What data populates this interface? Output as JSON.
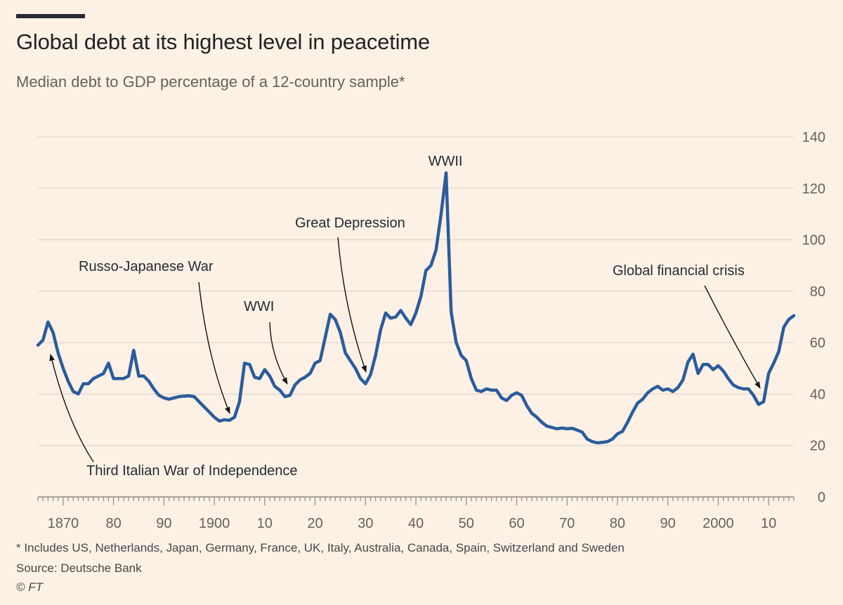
{
  "header": {
    "title": "Global debt at its highest level in peacetime",
    "subtitle": "Median debt to GDP percentage of a 12-country sample*"
  },
  "footer": {
    "note": "* Includes US, Netherlands, Japan, Germany, France, UK, Italy, Australia, Canada, Spain, Switzerland and Sweden",
    "source": "Source: Deutsche Bank",
    "credit": "© FT"
  },
  "colors": {
    "line": "#2b5c9c",
    "grid": "#e2d8ce",
    "axis": "#8f8a85",
    "background": "#fdf1e6"
  },
  "chart_data": {
    "type": "line",
    "title": "Global debt at its highest level in peacetime",
    "subtitle": "Median debt to GDP percentage of a 12-country sample*",
    "xlabel": "",
    "ylabel": "",
    "xlim": [
      1865,
      2015
    ],
    "ylim": [
      0,
      140
    ],
    "grid": true,
    "y_axis_side": "right",
    "y_ticks": [
      0,
      20,
      40,
      60,
      80,
      100,
      120,
      140
    ],
    "x_ticks": [
      {
        "value": 1870,
        "label": "1870"
      },
      {
        "value": 1880,
        "label": "80"
      },
      {
        "value": 1890,
        "label": "90"
      },
      {
        "value": 1900,
        "label": "1900"
      },
      {
        "value": 1910,
        "label": "10"
      },
      {
        "value": 1920,
        "label": "20"
      },
      {
        "value": 1930,
        "label": "30"
      },
      {
        "value": 1940,
        "label": "40"
      },
      {
        "value": 1950,
        "label": "50"
      },
      {
        "value": 1960,
        "label": "60"
      },
      {
        "value": 1970,
        "label": "70"
      },
      {
        "value": 1980,
        "label": "80"
      },
      {
        "value": 1990,
        "label": "90"
      },
      {
        "value": 2000,
        "label": "2000"
      },
      {
        "value": 2010,
        "label": "10"
      }
    ],
    "series": [
      {
        "name": "Median debt to GDP (%)",
        "x": [
          1865,
          1866,
          1867,
          1868,
          1869,
          1870,
          1871,
          1872,
          1873,
          1874,
          1875,
          1876,
          1877,
          1878,
          1879,
          1880,
          1881,
          1882,
          1883,
          1884,
          1885,
          1886,
          1887,
          1888,
          1889,
          1890,
          1891,
          1892,
          1893,
          1894,
          1895,
          1896,
          1897,
          1898,
          1899,
          1900,
          1901,
          1902,
          1903,
          1904,
          1905,
          1906,
          1907,
          1908,
          1909,
          1910,
          1911,
          1912,
          1913,
          1914,
          1915,
          1916,
          1917,
          1918,
          1919,
          1920,
          1921,
          1922,
          1923,
          1924,
          1925,
          1926,
          1927,
          1928,
          1929,
          1930,
          1931,
          1932,
          1933,
          1934,
          1935,
          1936,
          1937,
          1938,
          1939,
          1940,
          1941,
          1942,
          1943,
          1944,
          1945,
          1946,
          1947,
          1948,
          1949,
          1950,
          1951,
          1952,
          1953,
          1954,
          1955,
          1956,
          1957,
          1958,
          1959,
          1960,
          1961,
          1962,
          1963,
          1964,
          1965,
          1966,
          1967,
          1968,
          1969,
          1970,
          1971,
          1972,
          1973,
          1974,
          1975,
          1976,
          1977,
          1978,
          1979,
          1980,
          1981,
          1982,
          1983,
          1984,
          1985,
          1986,
          1987,
          1988,
          1989,
          1990,
          1991,
          1992,
          1993,
          1994,
          1995,
          1996,
          1997,
          1998,
          1999,
          2000,
          2001,
          2002,
          2003,
          2004,
          2005,
          2006,
          2007,
          2008,
          2009,
          2010,
          2011,
          2012,
          2013,
          2014,
          2015
        ],
        "values": [
          59,
          61,
          68,
          64,
          56,
          50,
          45,
          41,
          40,
          44,
          44,
          46,
          47,
          48,
          52,
          46,
          46,
          46,
          47,
          57,
          47,
          47,
          45,
          42,
          39.5,
          38.5,
          38,
          38.5,
          39,
          39.2,
          39.3,
          39,
          37,
          35,
          33,
          31,
          29.5,
          30,
          29.8,
          31,
          37,
          52,
          51.5,
          46.5,
          46,
          49.5,
          47,
          43,
          41.5,
          39,
          39.5,
          43.5,
          45.5,
          46.5,
          48,
          52,
          53,
          62,
          71,
          69,
          64,
          56,
          53,
          50,
          46,
          44,
          47.5,
          55,
          65,
          71.5,
          69.5,
          70,
          72.5,
          69.5,
          67,
          71.5,
          78,
          88,
          90,
          96,
          110,
          126,
          72,
          60,
          55,
          53,
          46,
          41.5,
          41,
          42,
          41.5,
          41.5,
          38.5,
          37.5,
          39.5,
          40.5,
          39.5,
          35.5,
          32.5,
          31,
          29,
          27.5,
          27,
          26.5,
          26.8,
          26.5,
          26.7,
          26,
          25.2,
          22.5,
          21.5,
          21,
          21.2,
          21.5,
          22.5,
          24.5,
          25.5,
          29,
          33,
          36.5,
          38,
          40.5,
          42,
          43,
          41.5,
          42,
          41,
          42.5,
          45.5,
          52.5,
          55.5,
          48,
          51.5,
          51.5,
          49.5,
          51,
          49,
          46,
          43.5,
          42.5,
          42,
          42,
          39.5,
          36,
          37,
          48,
          52,
          56.5,
          66,
          69,
          70.5
        ]
      }
    ],
    "annotations": [
      {
        "text": "Third Italian War of Independence",
        "x": 1866,
        "y": 57
      },
      {
        "text": "Russo-Japanese War",
        "x": 1904,
        "y": 32
      },
      {
        "text": "WWI",
        "x": 1914,
        "y": 40.5
      },
      {
        "text": "Great Depression",
        "x": 1930,
        "y": 47
      },
      {
        "text": "WWII",
        "x": 1945,
        "y": 126
      },
      {
        "text": "Global financial crisis",
        "x": 2008,
        "y": 42
      }
    ]
  }
}
